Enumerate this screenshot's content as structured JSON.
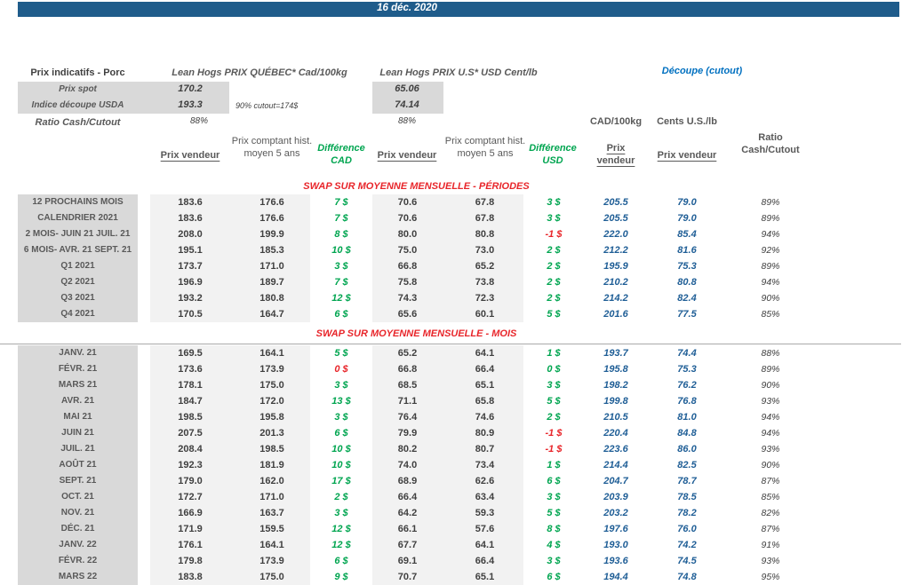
{
  "title_bar": {
    "date": "16 déc. 2020"
  },
  "colors": {
    "bar_blue": "#1f5c8b",
    "cutout_title_blue": "#0070c0",
    "cutout_value_blue": "#1f5e96",
    "diff_green": "#00a550",
    "diff_red": "#e8252a",
    "label_band_gray": "#d9d9d9",
    "column_band_gray": "#f2f2f2"
  },
  "header": {
    "left_title": "Prix indicatifs - Porc",
    "quebec_title": "Lean Hogs PRIX QUÉBEC* Cad/100kg",
    "us_title": "Lean Hogs PRIX U.S* USD Cent/lb",
    "cutout_title": "Découpe (cutout)",
    "spot": {
      "label": "Prix spot",
      "cad": "170.2",
      "usd": "65.06"
    },
    "usda": {
      "label": "Indice découpe USDA",
      "cad": "193.3",
      "usd": "74.14"
    },
    "cutout_note": "90% cutout=174$",
    "ratio": {
      "label": "Ratio Cash/Cutout",
      "cad": "88%",
      "usd": "88%"
    },
    "unit_cad": "CAD/100kg",
    "unit_us": "Cents U.S./lb"
  },
  "columns": {
    "prix_vendeur_cad": "Prix vendeur",
    "prix_comptant_cad": "Prix comptant hist. moyen 5 ans",
    "difference_cad": "Différence CAD",
    "prix_vendeur_usd": "Prix vendeur",
    "prix_comptant_usd": "Prix comptant hist. moyen 5 ans",
    "difference_usd": "Différence USD",
    "prix_vendeur_cutout_cad": "Prix vendeur",
    "prix_vendeur_cutout_usd": "Prix vendeur",
    "ratio": "Ratio Cash/Cutout"
  },
  "sections": [
    {
      "header": "SWAP SUR MOYENNE MENSUELLE - PÉRIODES",
      "rows": [
        {
          "label": "12 PROCHAINS MOIS",
          "pv_cad": "183.6",
          "pc_cad": "176.6",
          "diff_cad": {
            "text": "7 $",
            "color": "green"
          },
          "pv_usd": "70.6",
          "pc_usd": "67.8",
          "diff_usd": {
            "text": "3 $",
            "color": "green"
          },
          "cut_cad": "205.5",
          "cut_usd": "79.0",
          "ratio": "89%"
        },
        {
          "label": "CALENDRIER 2021",
          "pv_cad": "183.6",
          "pc_cad": "176.6",
          "diff_cad": {
            "text": "7 $",
            "color": "green"
          },
          "pv_usd": "70.6",
          "pc_usd": "67.8",
          "diff_usd": {
            "text": "3 $",
            "color": "green"
          },
          "cut_cad": "205.5",
          "cut_usd": "79.0",
          "ratio": "89%"
        },
        {
          "label": "2 MOIS- JUIN 21 JUIL. 21",
          "pv_cad": "208.0",
          "pc_cad": "199.9",
          "diff_cad": {
            "text": "8 $",
            "color": "green"
          },
          "pv_usd": "80.0",
          "pc_usd": "80.8",
          "diff_usd": {
            "text": "-1 $",
            "color": "red"
          },
          "cut_cad": "222.0",
          "cut_usd": "85.4",
          "ratio": "94%"
        },
        {
          "label": "6 MOIS- AVR. 21 SEPT. 21",
          "pv_cad": "195.1",
          "pc_cad": "185.3",
          "diff_cad": {
            "text": "10 $",
            "color": "green"
          },
          "pv_usd": "75.0",
          "pc_usd": "73.0",
          "diff_usd": {
            "text": "2 $",
            "color": "green"
          },
          "cut_cad": "212.2",
          "cut_usd": "81.6",
          "ratio": "92%"
        },
        {
          "label": "Q1 2021",
          "pv_cad": "173.7",
          "pc_cad": "171.0",
          "diff_cad": {
            "text": "3 $",
            "color": "green"
          },
          "pv_usd": "66.8",
          "pc_usd": "65.2",
          "diff_usd": {
            "text": "2 $",
            "color": "green"
          },
          "cut_cad": "195.9",
          "cut_usd": "75.3",
          "ratio": "89%"
        },
        {
          "label": "Q2 2021",
          "pv_cad": "196.9",
          "pc_cad": "189.7",
          "diff_cad": {
            "text": "7 $",
            "color": "green"
          },
          "pv_usd": "75.8",
          "pc_usd": "73.8",
          "diff_usd": {
            "text": "2 $",
            "color": "green"
          },
          "cut_cad": "210.2",
          "cut_usd": "80.8",
          "ratio": "94%"
        },
        {
          "label": "Q3 2021",
          "pv_cad": "193.2",
          "pc_cad": "180.8",
          "diff_cad": {
            "text": "12 $",
            "color": "green"
          },
          "pv_usd": "74.3",
          "pc_usd": "72.3",
          "diff_usd": {
            "text": "2 $",
            "color": "green"
          },
          "cut_cad": "214.2",
          "cut_usd": "82.4",
          "ratio": "90%"
        },
        {
          "label": "Q4 2021",
          "pv_cad": "170.5",
          "pc_cad": "164.7",
          "diff_cad": {
            "text": "6 $",
            "color": "green"
          },
          "pv_usd": "65.6",
          "pc_usd": "60.1",
          "diff_usd": {
            "text": "5 $",
            "color": "green"
          },
          "cut_cad": "201.6",
          "cut_usd": "77.5",
          "ratio": "85%"
        }
      ]
    },
    {
      "header": "SWAP SUR MOYENNE MENSUELLE - MOIS",
      "rows": [
        {
          "label": "JANV. 21",
          "pv_cad": "169.5",
          "pc_cad": "164.1",
          "diff_cad": {
            "text": "5 $",
            "color": "green"
          },
          "pv_usd": "65.2",
          "pc_usd": "64.1",
          "diff_usd": {
            "text": "1 $",
            "color": "green"
          },
          "cut_cad": "193.7",
          "cut_usd": "74.4",
          "ratio": "88%"
        },
        {
          "label": "FÉVR. 21",
          "pv_cad": "173.6",
          "pc_cad": "173.9",
          "diff_cad": {
            "text": "0 $",
            "color": "red"
          },
          "pv_usd": "66.8",
          "pc_usd": "66.4",
          "diff_usd": {
            "text": "0 $",
            "color": "green"
          },
          "cut_cad": "195.8",
          "cut_usd": "75.3",
          "ratio": "89%"
        },
        {
          "label": "MARS 21",
          "pv_cad": "178.1",
          "pc_cad": "175.0",
          "diff_cad": {
            "text": "3 $",
            "color": "green"
          },
          "pv_usd": "68.5",
          "pc_usd": "65.1",
          "diff_usd": {
            "text": "3 $",
            "color": "green"
          },
          "cut_cad": "198.2",
          "cut_usd": "76.2",
          "ratio": "90%"
        },
        {
          "label": "AVR. 21",
          "pv_cad": "184.7",
          "pc_cad": "172.0",
          "diff_cad": {
            "text": "13 $",
            "color": "green"
          },
          "pv_usd": "71.1",
          "pc_usd": "65.8",
          "diff_usd": {
            "text": "5 $",
            "color": "green"
          },
          "cut_cad": "199.8",
          "cut_usd": "76.8",
          "ratio": "93%"
        },
        {
          "label": "MAI 21",
          "pv_cad": "198.5",
          "pc_cad": "195.8",
          "diff_cad": {
            "text": "3 $",
            "color": "green"
          },
          "pv_usd": "76.4",
          "pc_usd": "74.6",
          "diff_usd": {
            "text": "2 $",
            "color": "green"
          },
          "cut_cad": "210.5",
          "cut_usd": "81.0",
          "ratio": "94%"
        },
        {
          "label": "JUIN 21",
          "pv_cad": "207.5",
          "pc_cad": "201.3",
          "diff_cad": {
            "text": "6 $",
            "color": "green"
          },
          "pv_usd": "79.9",
          "pc_usd": "80.9",
          "diff_usd": {
            "text": "-1 $",
            "color": "red"
          },
          "cut_cad": "220.4",
          "cut_usd": "84.8",
          "ratio": "94%"
        },
        {
          "label": "JUIL. 21",
          "pv_cad": "208.4",
          "pc_cad": "198.5",
          "diff_cad": {
            "text": "10 $",
            "color": "green"
          },
          "pv_usd": "80.2",
          "pc_usd": "80.7",
          "diff_usd": {
            "text": "-1 $",
            "color": "red"
          },
          "cut_cad": "223.6",
          "cut_usd": "86.0",
          "ratio": "93%"
        },
        {
          "label": "AOÛT 21",
          "pv_cad": "192.3",
          "pc_cad": "181.9",
          "diff_cad": {
            "text": "10 $",
            "color": "green"
          },
          "pv_usd": "74.0",
          "pc_usd": "73.4",
          "diff_usd": {
            "text": "1 $",
            "color": "green"
          },
          "cut_cad": "214.4",
          "cut_usd": "82.5",
          "ratio": "90%"
        },
        {
          "label": "SEPT. 21",
          "pv_cad": "179.0",
          "pc_cad": "162.0",
          "diff_cad": {
            "text": "17 $",
            "color": "green"
          },
          "pv_usd": "68.9",
          "pc_usd": "62.6",
          "diff_usd": {
            "text": "6 $",
            "color": "green"
          },
          "cut_cad": "204.7",
          "cut_usd": "78.7",
          "ratio": "87%"
        },
        {
          "label": "OCT. 21",
          "pv_cad": "172.7",
          "pc_cad": "171.0",
          "diff_cad": {
            "text": "2 $",
            "color": "green"
          },
          "pv_usd": "66.4",
          "pc_usd": "63.4",
          "diff_usd": {
            "text": "3 $",
            "color": "green"
          },
          "cut_cad": "203.9",
          "cut_usd": "78.5",
          "ratio": "85%"
        },
        {
          "label": "NOV. 21",
          "pv_cad": "166.9",
          "pc_cad": "163.7",
          "diff_cad": {
            "text": "3 $",
            "color": "green"
          },
          "pv_usd": "64.2",
          "pc_usd": "59.3",
          "diff_usd": {
            "text": "5 $",
            "color": "green"
          },
          "cut_cad": "203.2",
          "cut_usd": "78.2",
          "ratio": "82%"
        },
        {
          "label": "DÉC. 21",
          "pv_cad": "171.9",
          "pc_cad": "159.5",
          "diff_cad": {
            "text": "12 $",
            "color": "green"
          },
          "pv_usd": "66.1",
          "pc_usd": "57.6",
          "diff_usd": {
            "text": "8 $",
            "color": "green"
          },
          "cut_cad": "197.6",
          "cut_usd": "76.0",
          "ratio": "87%"
        },
        {
          "label": "JANV. 22",
          "pv_cad": "176.1",
          "pc_cad": "164.1",
          "diff_cad": {
            "text": "12 $",
            "color": "green"
          },
          "pv_usd": "67.7",
          "pc_usd": "64.1",
          "diff_usd": {
            "text": "4 $",
            "color": "green"
          },
          "cut_cad": "193.0",
          "cut_usd": "74.2",
          "ratio": "91%"
        },
        {
          "label": "FÉVR. 22",
          "pv_cad": "179.8",
          "pc_cad": "173.9",
          "diff_cad": {
            "text": "6 $",
            "color": "green"
          },
          "pv_usd": "69.1",
          "pc_usd": "66.4",
          "diff_usd": {
            "text": "3 $",
            "color": "green"
          },
          "cut_cad": "193.6",
          "cut_usd": "74.5",
          "ratio": "93%"
        },
        {
          "label": "MARS 22",
          "pv_cad": "183.8",
          "pc_cad": "175.0",
          "diff_cad": {
            "text": "9 $",
            "color": "green"
          },
          "pv_usd": "70.7",
          "pc_usd": "65.1",
          "diff_usd": {
            "text": "6 $",
            "color": "green"
          },
          "cut_cad": "194.4",
          "cut_usd": "74.8",
          "ratio": "95%"
        }
      ]
    }
  ]
}
